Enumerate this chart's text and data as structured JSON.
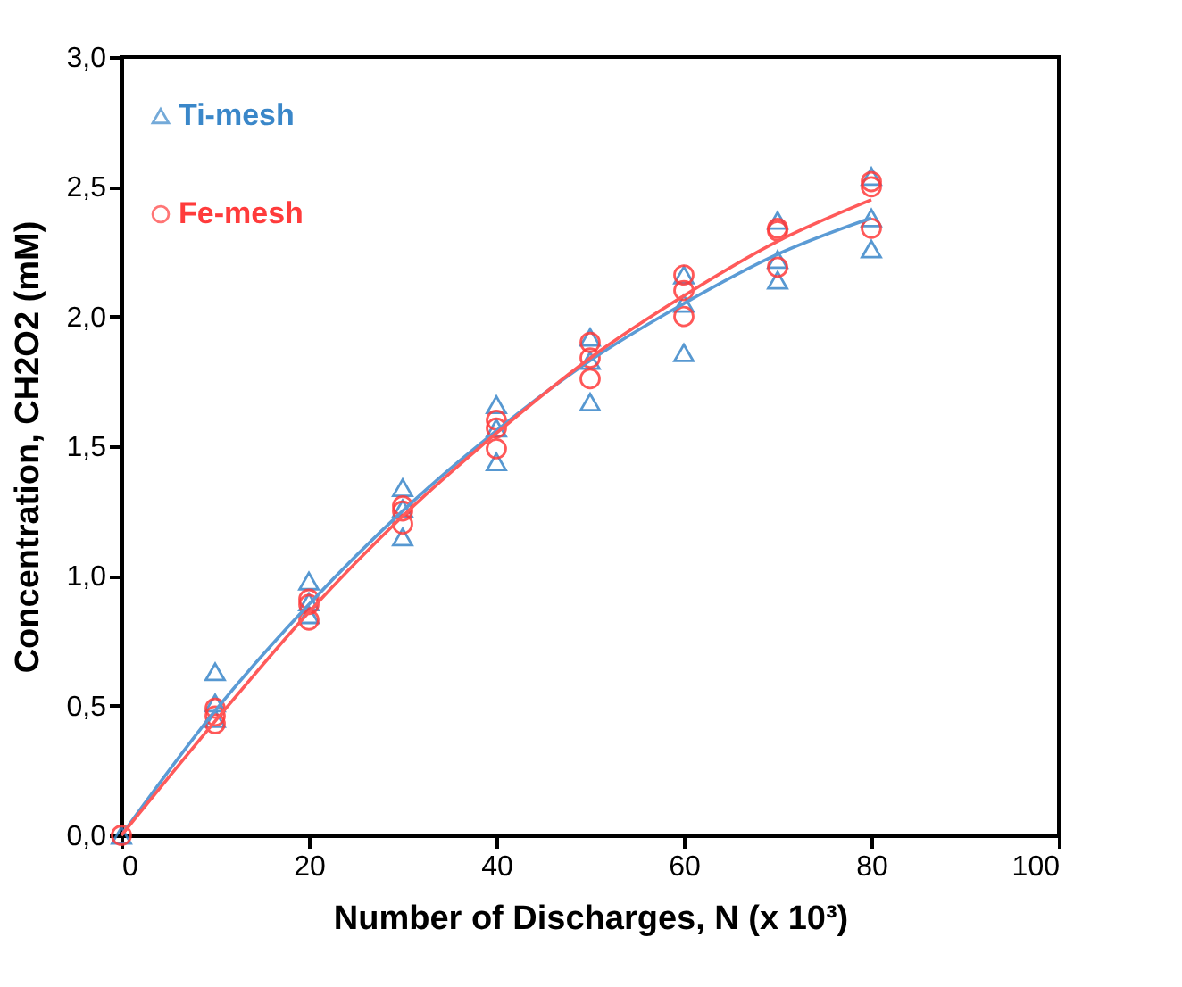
{
  "chart_data": {
    "type": "scatter",
    "xlabel": "Number of Discharges, N (x 10³)",
    "ylabel": "Concentration, CH2O2 (mM)",
    "xlim": [
      0,
      100
    ],
    "xticks": [
      0,
      20,
      40,
      60,
      80,
      100
    ],
    "ylim": [
      0,
      3
    ],
    "yticks": [
      {
        "value": 0,
        "label": "0,0"
      },
      {
        "value": 0.5,
        "label": "0,5"
      },
      {
        "value": 1,
        "label": "1,0"
      },
      {
        "value": 1.5,
        "label": "1,5"
      },
      {
        "value": 2,
        "label": "2,0"
      },
      {
        "value": 2.5,
        "label": "2,5"
      },
      {
        "value": 3,
        "label": "3,0"
      }
    ],
    "grid": false,
    "legend": "top left",
    "series": [
      {
        "name": "Ti-mesh",
        "color": "#3a87c9",
        "marker": "triangle",
        "x": [
          0,
          10,
          10,
          10,
          20,
          20,
          20,
          30,
          30,
          30,
          40,
          40,
          40,
          50,
          50,
          50,
          60,
          60,
          60,
          70,
          70,
          70,
          80,
          80,
          80
        ],
        "values": [
          0,
          0.63,
          0.51,
          0.45,
          0.98,
          0.9,
          0.85,
          1.34,
          1.26,
          1.15,
          1.66,
          1.57,
          1.44,
          1.92,
          1.83,
          1.67,
          2.16,
          2.05,
          1.86,
          2.37,
          2.22,
          2.14,
          2.54,
          2.38,
          2.26
        ]
      },
      {
        "name": "Fe-mesh",
        "color": "#ff3b3b",
        "marker": "circle",
        "x": [
          0,
          10,
          10,
          10,
          20,
          20,
          20,
          30,
          30,
          30,
          40,
          40,
          40,
          50,
          50,
          50,
          60,
          60,
          60,
          70,
          70,
          70,
          80,
          80,
          80
        ],
        "values": [
          0,
          0.49,
          0.46,
          0.43,
          0.91,
          0.89,
          0.83,
          1.27,
          1.25,
          1.2,
          1.6,
          1.57,
          1.49,
          1.9,
          1.84,
          1.76,
          2.16,
          2.1,
          2.0,
          2.34,
          2.33,
          2.19,
          2.52,
          2.5,
          2.34
        ]
      },
      {
        "type": "line",
        "color": "#5b9bd5",
        "marker": "none",
        "x": [
          0,
          10,
          20,
          30,
          40,
          50,
          60,
          70,
          80
        ],
        "values": [
          0,
          0.48,
          0.89,
          1.25,
          1.56,
          1.83,
          2.05,
          2.24,
          2.38
        ]
      },
      {
        "type": "line",
        "color": "#ff5a5a",
        "marker": "none",
        "x": [
          0,
          10,
          20,
          30,
          40,
          50,
          60,
          70,
          80
        ],
        "values": [
          0,
          0.44,
          0.86,
          1.23,
          1.55,
          1.84,
          2.08,
          2.29,
          2.45
        ]
      }
    ]
  }
}
